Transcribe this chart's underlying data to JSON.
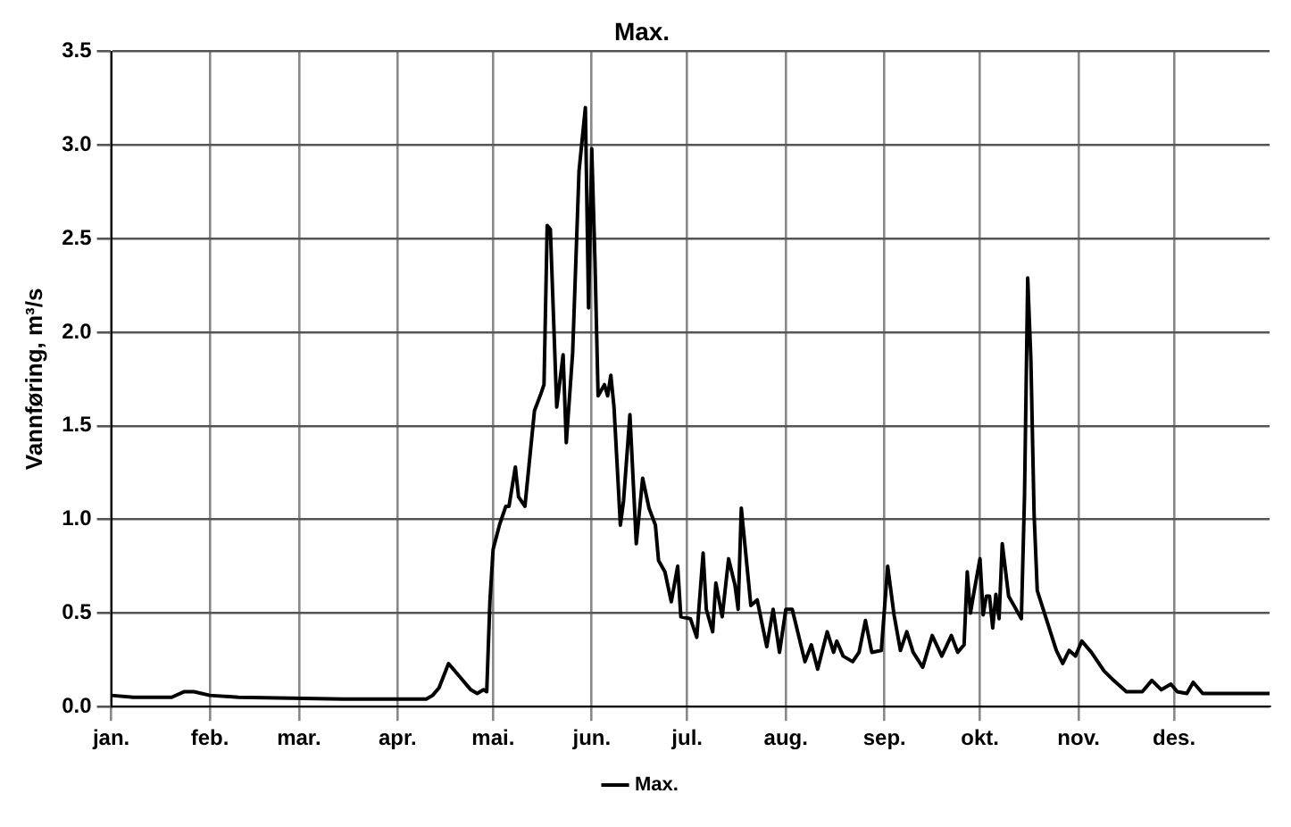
{
  "chart_data": {
    "type": "line",
    "title": "Max.",
    "ylabel": "Vannføring, m³/s",
    "xlim": [
      "--01-01",
      "--12-31"
    ],
    "xticks": [
      {
        "value": "--01-01",
        "label": "jan."
      },
      {
        "value": "--02-01",
        "label": "feb."
      },
      {
        "value": "--03-01",
        "label": "mar."
      },
      {
        "value": "--04-01",
        "label": "apr."
      },
      {
        "value": "--05-01",
        "label": "mai."
      },
      {
        "value": "--06-01",
        "label": "jun."
      },
      {
        "value": "--07-01",
        "label": "jul."
      },
      {
        "value": "--08-01",
        "label": "aug."
      },
      {
        "value": "--09-01",
        "label": "sep."
      },
      {
        "value": "--10-01",
        "label": "okt."
      },
      {
        "value": "--11-01",
        "label": "nov."
      },
      {
        "value": "--12-01",
        "label": "des."
      }
    ],
    "ylim": [
      0,
      3.5
    ],
    "yticks": [
      {
        "value": 0,
        "label": "0.0"
      },
      0.5,
      {
        "value": 1,
        "label": "1.0"
      },
      1.5,
      {
        "value": 2,
        "label": "2.0"
      },
      2.5,
      {
        "value": 3,
        "label": "3.0"
      },
      3.5
    ],
    "grid": true,
    "legend": "bottom",
    "marker": "none",
    "line_style": "solid",
    "x": [
      "--01-01",
      "--01-08",
      "--01-20",
      "--01-24",
      "--01-27",
      "--02-01",
      "--02-10",
      "--03-15",
      "--04-10",
      "--04-12",
      "--04-14",
      "--04-17",
      "--04-21",
      "--04-24",
      "--04-26",
      "--04-28",
      "--04-29",
      "--04-30",
      "--05-01",
      "--05-03",
      "--05-05",
      "--05-06",
      "--05-08",
      "--05-09",
      "--05-11",
      "--05-14",
      "--05-16",
      "--05-17",
      "--05-18",
      "--05-19",
      "--05-21",
      "--05-23",
      "--05-24",
      "--05-26",
      "--05-28",
      "--05-30",
      "--05-31",
      "--06-01",
      "--06-02",
      "--06-03",
      "--06-05",
      "--06-06",
      "--06-07",
      "--06-08",
      "--06-10",
      "--06-11",
      "--06-13",
      "--06-15",
      "--06-17",
      "--06-19",
      "--06-21",
      "--06-22",
      "--06-24",
      "--06-26",
      "--06-28",
      "--06-29",
      "--07-02",
      "--07-04",
      "--07-06",
      "--07-07",
      "--07-09",
      "--07-10",
      "--07-12",
      "--07-14",
      "--07-16",
      "--07-17",
      "--07-18",
      "--07-21",
      "--07-23",
      "--07-26",
      "--07-28",
      "--07-30",
      "--08-01",
      "--08-03",
      "--08-07",
      "--08-09",
      "--08-11",
      "--08-14",
      "--08-16",
      "--08-17",
      "--08-19",
      "--08-22",
      "--08-24",
      "--08-26",
      "--08-28",
      "--08-31",
      "--09-02",
      "--09-04",
      "--09-06",
      "--09-08",
      "--09-10",
      "--09-13",
      "--09-16",
      "--09-19",
      "--09-22",
      "--09-24",
      "--09-26",
      "--09-27",
      "--09-28",
      "--09-29",
      "--10-01",
      "--10-02",
      "--10-03",
      "--10-04",
      "--10-05",
      "--10-06",
      "--10-07",
      "--10-08",
      "--10-10",
      "--10-14",
      "--10-15",
      "--10-16",
      "--10-17",
      "--10-18",
      "--10-19",
      "--10-22",
      "--10-25",
      "--10-27",
      "--10-29",
      "--10-31",
      "--11-02",
      "--11-05",
      "--11-09",
      "--11-12",
      "--11-16",
      "--11-21",
      "--11-24",
      "--11-27",
      "--11-30",
      "--12-02",
      "--12-05",
      "--12-07",
      "--12-10",
      "--12-20",
      "--12-31"
    ],
    "series": [
      {
        "name": "Max.",
        "color": "#000000",
        "values": [
          0.06,
          0.05,
          0.05,
          0.08,
          0.08,
          0.06,
          0.05,
          0.04,
          0.04,
          0.06,
          0.1,
          0.23,
          0.15,
          0.09,
          0.07,
          0.09,
          0.08,
          0.56,
          0.84,
          0.97,
          1.07,
          1.07,
          1.28,
          1.12,
          1.07,
          1.58,
          1.67,
          1.72,
          2.57,
          2.55,
          1.6,
          1.88,
          1.41,
          1.89,
          2.86,
          3.2,
          2.13,
          2.98,
          2.39,
          1.66,
          1.72,
          1.66,
          1.77,
          1.6,
          0.97,
          1.1,
          1.56,
          0.87,
          1.22,
          1.06,
          0.97,
          0.78,
          0.72,
          0.56,
          0.75,
          0.48,
          0.47,
          0.37,
          0.82,
          0.52,
          0.4,
          0.66,
          0.48,
          0.79,
          0.65,
          0.52,
          1.06,
          0.54,
          0.57,
          0.32,
          0.52,
          0.29,
          0.52,
          0.52,
          0.24,
          0.33,
          0.2,
          0.4,
          0.29,
          0.35,
          0.27,
          0.24,
          0.29,
          0.46,
          0.29,
          0.3,
          0.75,
          0.49,
          0.3,
          0.4,
          0.29,
          0.21,
          0.38,
          0.27,
          0.38,
          0.29,
          0.33,
          0.72,
          0.5,
          0.6,
          0.79,
          0.49,
          0.59,
          0.59,
          0.42,
          0.6,
          0.47,
          0.87,
          0.59,
          0.47,
          1.13,
          2.29,
          1.85,
          1.03,
          0.62,
          0.46,
          0.3,
          0.23,
          0.3,
          0.27,
          0.35,
          0.29,
          0.19,
          0.14,
          0.08,
          0.08,
          0.14,
          0.09,
          0.12,
          0.08,
          0.07,
          0.13,
          0.07,
          0.07,
          0.07
        ]
      }
    ]
  }
}
